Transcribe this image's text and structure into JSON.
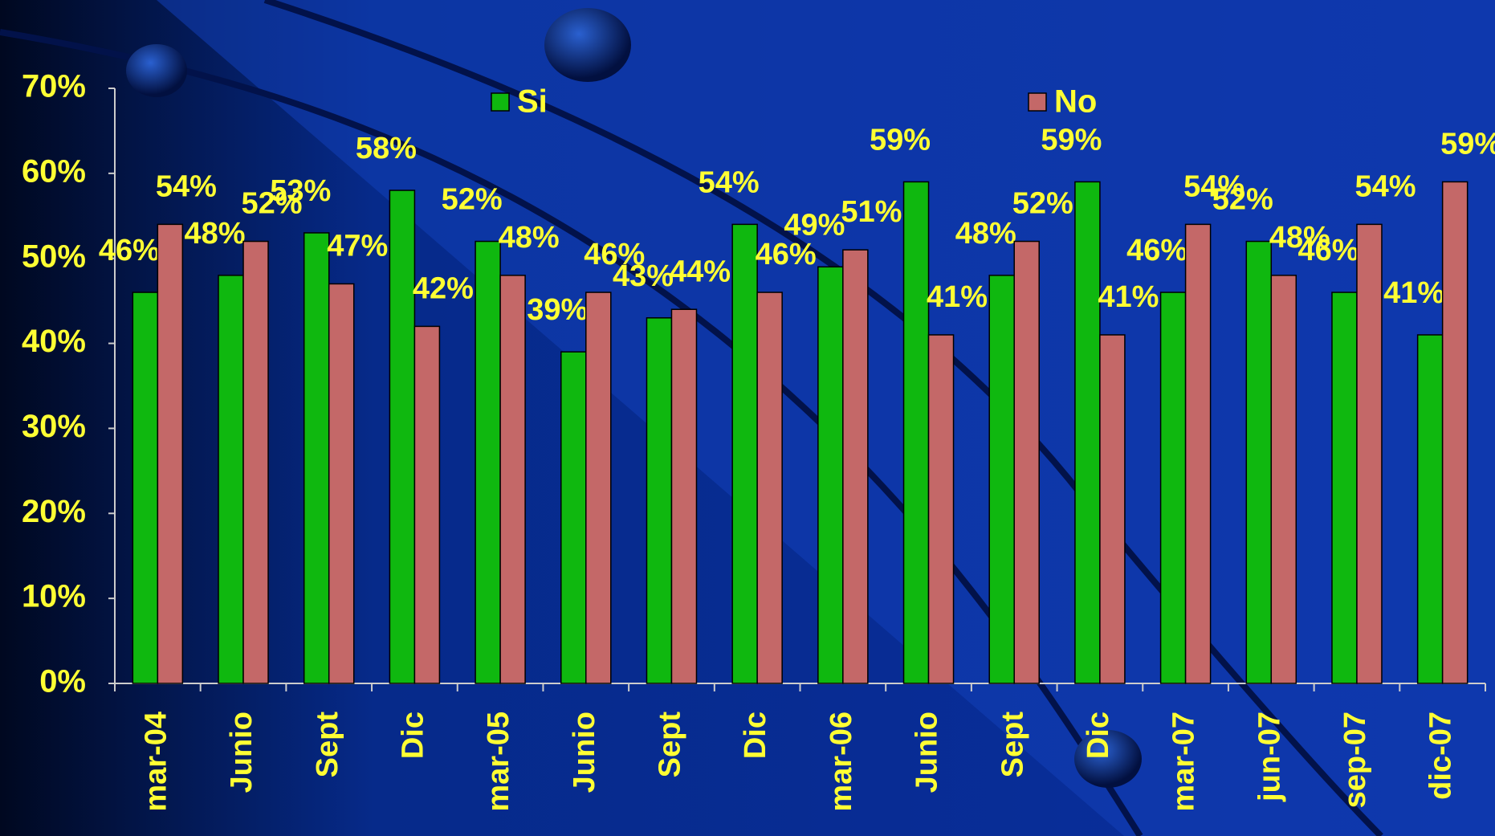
{
  "chart_data": {
    "type": "bar",
    "categories": [
      "mar-04",
      "Junio",
      "Sept",
      "Dic",
      "mar-05",
      "Junio",
      "Sept",
      "Dic",
      "mar-06",
      "Junio",
      "Sept",
      "Dic",
      "mar-07",
      "jun-07",
      "sep-07",
      "dic-07"
    ],
    "series": [
      {
        "name": "Si",
        "color": "#0fb80f",
        "values": [
          46,
          48,
          53,
          58,
          52,
          39,
          43,
          54,
          49,
          59,
          48,
          59,
          46,
          52,
          46,
          41
        ],
        "value_labels": [
          "46%",
          "48%",
          "53%",
          "58%",
          "52%",
          "39%",
          "43%",
          "54%",
          "49%",
          "59%",
          "48%",
          "59%",
          "46%",
          "52%",
          "46%",
          "41%"
        ]
      },
      {
        "name": "No",
        "color": "#c46868",
        "values": [
          54,
          52,
          47,
          42,
          48,
          46,
          44,
          46,
          51,
          41,
          52,
          41,
          54,
          48,
          54,
          59
        ],
        "value_labels": [
          "54%",
          "52%",
          "47%",
          "42%",
          "48%",
          "46%",
          "44%",
          "46%",
          "51%",
          "41%",
          "52%",
          "41%",
          "54%",
          "48%",
          "54%",
          "59%"
        ]
      }
    ],
    "ylim": [
      0,
      70
    ],
    "yticks": [
      {
        "value": 0,
        "label": "0%"
      },
      {
        "value": 10,
        "label": "10%"
      },
      {
        "value": 20,
        "label": "20%"
      },
      {
        "value": 30,
        "label": "30%"
      },
      {
        "value": 40,
        "label": "40%"
      },
      {
        "value": 50,
        "label": "50%"
      },
      {
        "value": 60,
        "label": "60%"
      },
      {
        "value": 70,
        "label": "70%"
      }
    ],
    "legend": "top"
  }
}
